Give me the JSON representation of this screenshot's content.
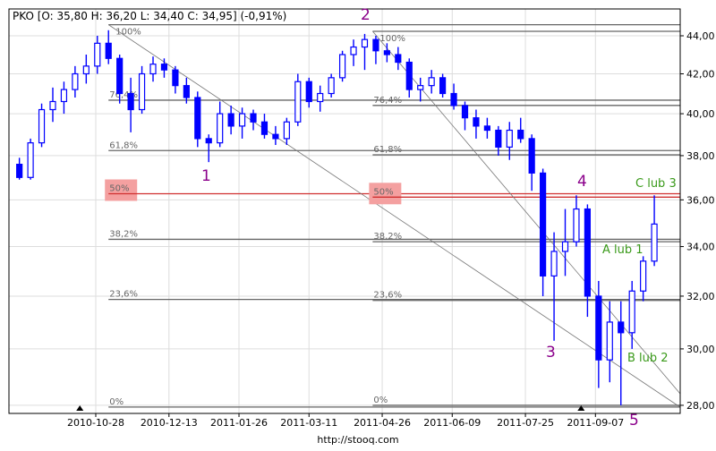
{
  "header": {
    "ticker_ohlc": "PKO [O: 35,80  H: 36,20  L: 34,40  C: 34,95] (-0,91%)"
  },
  "footer": {
    "source": "http://stooq.com"
  },
  "colors": {
    "candle": "#0000ff",
    "fib_line": "#666666",
    "fib50_line": "#d03030",
    "fib50_box": "#f4a0a0",
    "wave_label": "#8b008b",
    "alt_label": "#3a9a1a",
    "grid": "#dddddd"
  },
  "chart_data": {
    "type": "candlestick",
    "title": "",
    "y_scale": "log",
    "ylim": [
      27.9,
      45.0
    ],
    "grid": true,
    "y_ticks": [
      28,
      30,
      32,
      34,
      36,
      38,
      40,
      42,
      44
    ],
    "y_tick_labels": [
      "28,00",
      "30,00",
      "32,00",
      "34,00",
      "36,00",
      "38,00",
      "40,00",
      "42,00",
      "44,00"
    ],
    "x_tick_labels": [
      "2010-10-28",
      "2010-12-13",
      "2011-01-26",
      "2011-03-11",
      "2011-04-26",
      "2011-06-09",
      "2011-07-25",
      "2011-09-07"
    ],
    "markers": [
      "2010-10-18",
      "2011-08-29"
    ],
    "dates": [
      "2010-09-10",
      "2010-09-17",
      "2010-09-24",
      "2010-10-01",
      "2010-10-08",
      "2010-10-15",
      "2010-10-22",
      "2010-10-29",
      "2010-11-05",
      "2010-11-12",
      "2010-11-19",
      "2010-11-26",
      "2010-12-03",
      "2010-12-10",
      "2010-12-17",
      "2010-12-24",
      "2010-12-31",
      "2011-01-07",
      "2011-01-14",
      "2011-01-21",
      "2011-01-28",
      "2011-02-04",
      "2011-02-11",
      "2011-02-18",
      "2011-02-25",
      "2011-03-04",
      "2011-03-11",
      "2011-03-18",
      "2011-03-25",
      "2011-04-01",
      "2011-04-08",
      "2011-04-15",
      "2011-04-22",
      "2011-04-29",
      "2011-05-06",
      "2011-05-13",
      "2011-05-20",
      "2011-05-27",
      "2011-06-03",
      "2011-06-10",
      "2011-06-17",
      "2011-06-24",
      "2011-07-01",
      "2011-07-08",
      "2011-07-15",
      "2011-07-22",
      "2011-07-29",
      "2011-08-05",
      "2011-08-12",
      "2011-08-19",
      "2011-08-26",
      "2011-09-02",
      "2011-09-09",
      "2011-09-16",
      "2011-09-23",
      "2011-09-30",
      "2011-10-07",
      "2011-10-14"
    ],
    "ohlc": [
      [
        37.6,
        37.9,
        36.9,
        37.0
      ],
      [
        37.0,
        38.8,
        36.9,
        38.6
      ],
      [
        38.6,
        40.5,
        38.4,
        40.2
      ],
      [
        40.2,
        41.3,
        39.6,
        40.6
      ],
      [
        40.6,
        41.6,
        40.0,
        41.2
      ],
      [
        41.2,
        42.4,
        40.8,
        42.0
      ],
      [
        42.0,
        43.0,
        41.5,
        42.4
      ],
      [
        42.4,
        44.0,
        42.0,
        43.6
      ],
      [
        43.6,
        44.3,
        42.5,
        42.8
      ],
      [
        42.8,
        43.0,
        40.5,
        41.0
      ],
      [
        41.0,
        41.8,
        39.1,
        40.2
      ],
      [
        40.2,
        42.4,
        40.0,
        42.0
      ],
      [
        42.0,
        42.9,
        41.6,
        42.5
      ],
      [
        42.5,
        42.8,
        41.8,
        42.2
      ],
      [
        42.2,
        42.4,
        41.0,
        41.4
      ],
      [
        41.4,
        41.8,
        40.5,
        40.8
      ],
      [
        40.8,
        41.1,
        38.4,
        38.8
      ],
      [
        38.8,
        39.0,
        37.7,
        38.6
      ],
      [
        38.6,
        40.6,
        38.4,
        40.0
      ],
      [
        40.0,
        40.4,
        39.0,
        39.4
      ],
      [
        39.4,
        40.3,
        38.8,
        40.0
      ],
      [
        40.0,
        40.2,
        39.2,
        39.6
      ],
      [
        39.6,
        40.0,
        38.8,
        39.0
      ],
      [
        39.0,
        39.4,
        38.5,
        38.8
      ],
      [
        38.8,
        39.8,
        38.5,
        39.6
      ],
      [
        39.6,
        42.0,
        39.4,
        41.6
      ],
      [
        41.6,
        41.8,
        40.3,
        40.6
      ],
      [
        40.6,
        41.4,
        40.1,
        41.0
      ],
      [
        41.0,
        42.0,
        40.8,
        41.8
      ],
      [
        41.8,
        43.2,
        41.6,
        43.0
      ],
      [
        43.0,
        43.8,
        42.4,
        43.4
      ],
      [
        43.4,
        44.1,
        42.2,
        43.8
      ],
      [
        43.8,
        44.0,
        42.5,
        43.2
      ],
      [
        43.2,
        43.6,
        42.6,
        43.0
      ],
      [
        43.0,
        43.4,
        42.2,
        42.6
      ],
      [
        42.6,
        42.8,
        40.8,
        41.2
      ],
      [
        41.2,
        41.8,
        40.6,
        41.4
      ],
      [
        41.4,
        42.2,
        41.0,
        41.8
      ],
      [
        41.8,
        42.0,
        40.8,
        41.0
      ],
      [
        41.0,
        41.5,
        40.2,
        40.4
      ],
      [
        40.4,
        40.6,
        39.2,
        39.8
      ],
      [
        39.8,
        40.2,
        38.8,
        39.4
      ],
      [
        39.4,
        39.8,
        38.8,
        39.2
      ],
      [
        39.2,
        39.4,
        38.0,
        38.4
      ],
      [
        38.4,
        39.6,
        37.8,
        39.2
      ],
      [
        39.2,
        39.8,
        38.6,
        38.8
      ],
      [
        38.8,
        39.0,
        36.4,
        37.2
      ],
      [
        37.2,
        37.4,
        32.0,
        32.8
      ],
      [
        32.8,
        34.6,
        30.3,
        33.8
      ],
      [
        33.8,
        35.6,
        32.8,
        34.2
      ],
      [
        34.2,
        36.2,
        34.0,
        35.6
      ],
      [
        35.6,
        35.8,
        31.2,
        32.0
      ],
      [
        32.0,
        32.6,
        28.6,
        29.6
      ],
      [
        29.6,
        31.8,
        28.8,
        31.0
      ],
      [
        31.0,
        31.8,
        28.0,
        30.6
      ],
      [
        30.6,
        32.6,
        30.0,
        32.2
      ],
      [
        32.2,
        33.6,
        31.8,
        33.4
      ],
      [
        33.4,
        36.2,
        33.2,
        34.95
      ]
    ],
    "fibonacci": [
      {
        "from_date": "2010-11-05",
        "high": 44.6,
        "low": 27.94,
        "levels": [
          1,
          0.764,
          0.618,
          0.5,
          0.382,
          0.236,
          0
        ],
        "labels": [
          "100%",
          "76,4%",
          "61,8%",
          "50%",
          "38,2%",
          "23,6%",
          "0%"
        ]
      },
      {
        "from_date": "2011-04-20",
        "high": 44.24,
        "low": 28.0,
        "levels": [
          1,
          0.764,
          0.618,
          0.5,
          0.382,
          0.236,
          0
        ],
        "labels": [
          "100%",
          "76,4%",
          "61,8%",
          "50%",
          "38,2%",
          "23,6%",
          "0%"
        ]
      }
    ],
    "wave_labels": [
      "1",
      "2",
      "3",
      "4",
      "5"
    ],
    "alt_labels": [
      "A lub 1",
      "B lub 2",
      "C lub 3"
    ]
  }
}
